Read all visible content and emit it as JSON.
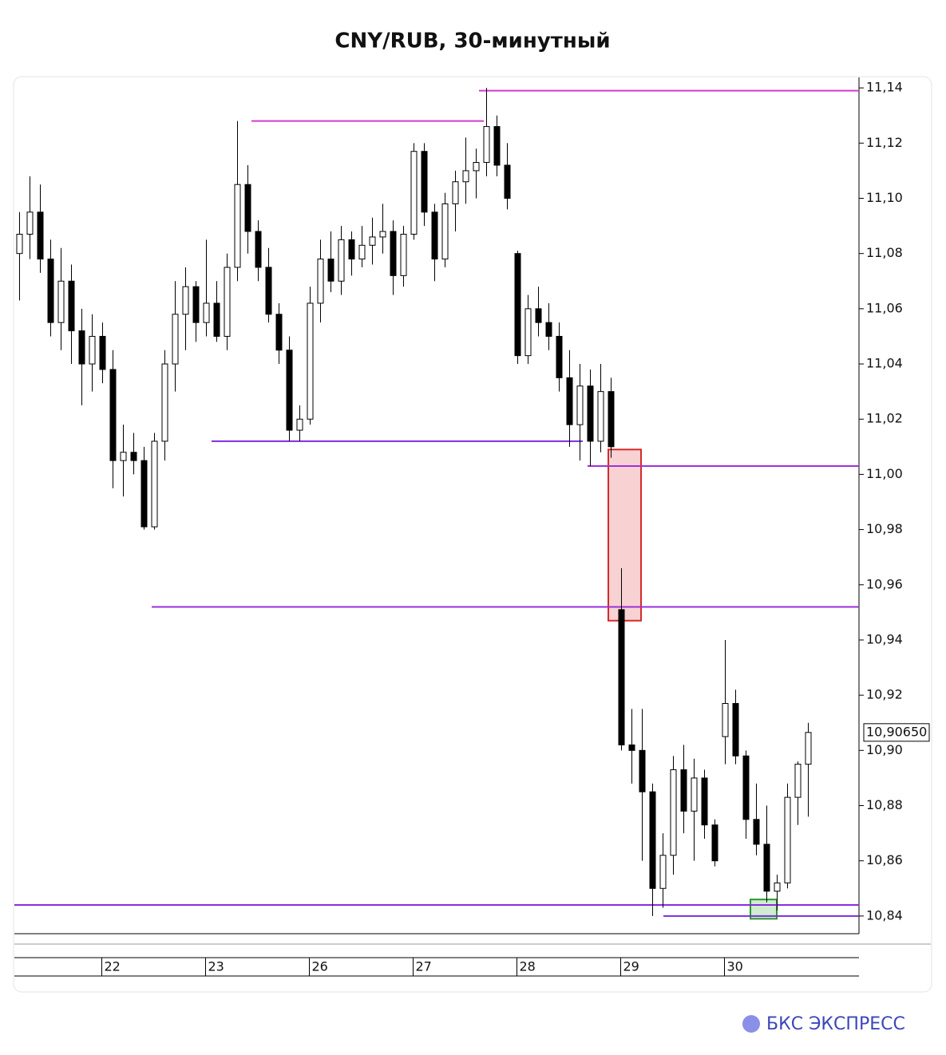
{
  "chart_data": {
    "type": "candlestick",
    "title": "CNY/RUB, 30-минутный",
    "brand": "БКС ЭКСПРЕСС",
    "categories": [
      null,
      null,
      null,
      null,
      null,
      null,
      null,
      null,
      "22",
      null,
      null,
      null,
      null,
      null,
      null,
      null,
      null,
      null,
      "23",
      null,
      null,
      null,
      null,
      null,
      null,
      null,
      null,
      null,
      "26",
      null,
      null,
      null,
      null,
      null,
      null,
      null,
      null,
      null,
      "27",
      null,
      null,
      null,
      null,
      null,
      null,
      null,
      null,
      null,
      "28",
      null,
      null,
      null,
      null,
      null,
      null,
      null,
      null,
      null,
      "29",
      null,
      null,
      null,
      null,
      null,
      null,
      null,
      null,
      null,
      "30",
      null,
      null,
      null,
      null,
      null,
      null,
      null,
      null
    ],
    "open": [
      11.08,
      11.087,
      11.095,
      11.078,
      11.055,
      11.07,
      11.052,
      11.04,
      11.05,
      11.038,
      11.005,
      11.008,
      11.005,
      10.981,
      11.012,
      11.04,
      11.058,
      11.068,
      11.055,
      11.062,
      11.05,
      11.075,
      11.105,
      11.088,
      11.075,
      11.058,
      11.045,
      11.016,
      11.02,
      11.062,
      11.078,
      11.07,
      11.085,
      11.078,
      11.083,
      11.086,
      11.088,
      11.072,
      11.087,
      11.117,
      11.095,
      11.078,
      11.098,
      11.106,
      11.11,
      11.113,
      11.126,
      11.112,
      11.08,
      11.043,
      11.06,
      11.055,
      11.05,
      11.035,
      11.018,
      11.032,
      11.012,
      11.03,
      10.951,
      10.902,
      10.9,
      10.885,
      10.85,
      10.862,
      10.893,
      10.878,
      10.89,
      10.873,
      10.905,
      10.917,
      10.898,
      10.875,
      10.866,
      10.849,
      10.852,
      10.883,
      10.895
    ],
    "high": [
      11.095,
      11.108,
      11.105,
      11.085,
      11.082,
      11.076,
      11.06,
      11.058,
      11.055,
      11.045,
      11.018,
      11.015,
      11.01,
      11.015,
      11.045,
      11.07,
      11.075,
      11.07,
      11.085,
      11.07,
      11.08,
      11.128,
      11.112,
      11.092,
      11.082,
      11.062,
      11.05,
      11.025,
      11.068,
      11.085,
      11.088,
      11.09,
      11.088,
      11.09,
      11.093,
      11.098,
      11.092,
      11.09,
      11.12,
      11.12,
      11.098,
      11.102,
      11.11,
      11.122,
      11.118,
      11.14,
      11.13,
      11.12,
      11.081,
      11.065,
      11.068,
      11.062,
      11.055,
      11.045,
      11.04,
      11.038,
      11.04,
      11.035,
      10.966,
      10.915,
      10.915,
      10.888,
      10.87,
      10.898,
      10.902,
      10.897,
      10.893,
      10.875,
      10.94,
      10.922,
      10.9,
      10.888,
      10.88,
      10.855,
      10.888,
      10.896,
      10.91
    ],
    "low": [
      11.063,
      11.078,
      11.073,
      11.05,
      11.045,
      11.04,
      11.025,
      11.03,
      11.033,
      10.995,
      10.992,
      11.0,
      10.98,
      10.98,
      11.005,
      11.03,
      11.045,
      11.048,
      11.05,
      11.048,
      11.045,
      11.07,
      11.08,
      11.07,
      11.055,
      11.04,
      11.012,
      11.012,
      11.018,
      11.055,
      11.066,
      11.065,
      11.072,
      11.075,
      11.076,
      11.08,
      11.065,
      11.068,
      11.085,
      11.09,
      11.07,
      11.075,
      11.088,
      11.098,
      11.1,
      11.108,
      11.108,
      11.096,
      11.04,
      11.04,
      11.05,
      11.045,
      11.03,
      11.01,
      11.005,
      11.003,
      11.008,
      11.006,
      10.9,
      10.888,
      10.86,
      10.84,
      10.843,
      10.855,
      10.87,
      10.86,
      10.868,
      10.858,
      10.895,
      10.895,
      10.868,
      10.862,
      10.845,
      10.842,
      10.85,
      10.873,
      10.876
    ],
    "close": [
      11.087,
      11.095,
      11.078,
      11.055,
      11.07,
      11.052,
      11.04,
      11.05,
      11.038,
      11.005,
      11.008,
      11.005,
      10.981,
      11.012,
      11.04,
      11.058,
      11.068,
      11.055,
      11.062,
      11.05,
      11.075,
      11.105,
      11.088,
      11.075,
      11.058,
      11.045,
      11.016,
      11.02,
      11.062,
      11.078,
      11.07,
      11.085,
      11.078,
      11.083,
      11.086,
      11.088,
      11.072,
      11.087,
      11.117,
      11.095,
      11.078,
      11.098,
      11.106,
      11.11,
      11.113,
      11.126,
      11.112,
      11.1,
      11.043,
      11.06,
      11.055,
      11.05,
      11.035,
      11.018,
      11.032,
      11.012,
      11.03,
      11.01,
      10.902,
      10.9,
      10.885,
      10.85,
      10.862,
      10.893,
      10.878,
      10.89,
      10.873,
      10.86,
      10.917,
      10.898,
      10.875,
      10.866,
      10.849,
      10.852,
      10.883,
      10.895,
      10.9065
    ],
    "up_color": "#ffffff",
    "down_color": "#000000",
    "ylim": [
      10.8336,
      11.1438
    ],
    "yticks": [
      {
        "value": 10.84,
        "label": "10,84"
      },
      {
        "value": 10.86,
        "label": "10,86"
      },
      {
        "value": 10.88,
        "label": "10,88"
      },
      {
        "value": 10.9,
        "label": "10,90"
      },
      {
        "value": 10.92,
        "label": "10,92"
      },
      {
        "value": 10.94,
        "label": "10,94"
      },
      {
        "value": 10.96,
        "label": "10,96"
      },
      {
        "value": 10.98,
        "label": "10,98"
      },
      {
        "value": 11.0,
        "label": "11,00"
      },
      {
        "value": 11.02,
        "label": "11,02"
      },
      {
        "value": 11.04,
        "label": "11,04"
      },
      {
        "value": 11.06,
        "label": "11,06"
      },
      {
        "value": 11.08,
        "label": "11,08"
      },
      {
        "value": 11.1,
        "label": "11,10"
      },
      {
        "value": 11.12,
        "label": "11,12"
      },
      {
        "value": 11.14,
        "label": "11,14"
      }
    ],
    "last_price": {
      "value": 10.9065,
      "label": "10,90650"
    },
    "levels": [
      {
        "value": 11.139,
        "color": "#d23ad2"
      },
      {
        "value": 11.128,
        "color": "#d23ad2"
      },
      {
        "value": 11.012,
        "color": "#7b2be0"
      },
      {
        "value": 11.003,
        "color": "#a030d8"
      },
      {
        "value": 10.952,
        "color": "#9a2fdc"
      },
      {
        "value": 10.844,
        "color": "#8a2be0"
      },
      {
        "value": 10.84,
        "color": "#7b2be0"
      }
    ],
    "zones": [
      {
        "low": 10.947,
        "high": 11.009,
        "color": "#d42a2a",
        "fill": "#f8d2d2"
      },
      {
        "low": 10.839,
        "high": 10.846,
        "color": "#2a9a2a",
        "fill": "#cfeccf"
      }
    ]
  }
}
